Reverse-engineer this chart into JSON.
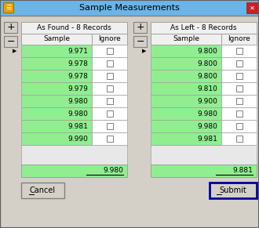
{
  "title": "Sample Measurements",
  "bg_color": "#d4d0c8",
  "title_bar_color": "#6ab4e8",
  "table_header_bg": "#f0f0f0",
  "table_bg": "#90EE90",
  "white": "#ffffff",
  "as_found_label": "As Found - 8 Records",
  "as_left_label": "As Left - 8 Records",
  "col_sample": "Sample",
  "col_ignore": "Ignore",
  "as_found_values": [
    "9.971",
    "9.978",
    "9.978",
    "9.979",
    "9.980",
    "9.980",
    "9.981",
    "9.990"
  ],
  "as_left_values": [
    "9.800",
    "9.800",
    "9.800",
    "9.810",
    "9.900",
    "9.980",
    "9.980",
    "9.981"
  ],
  "as_found_avg": "9.980",
  "as_left_avg": "9.881",
  "cancel_label": "Cancel",
  "submit_label": "Submit",
  "cell_border": "#a0a0a0",
  "text_color": "#000000",
  "checkbox_color": "#ffffff",
  "button_bg": "#d4d0c8",
  "submit_border": "#0000a0",
  "icon_color": "#e8a000",
  "close_btn_color": "#cc2020",
  "titlebar_text": "#000000",
  "panel_bg": "#e8e8e8"
}
